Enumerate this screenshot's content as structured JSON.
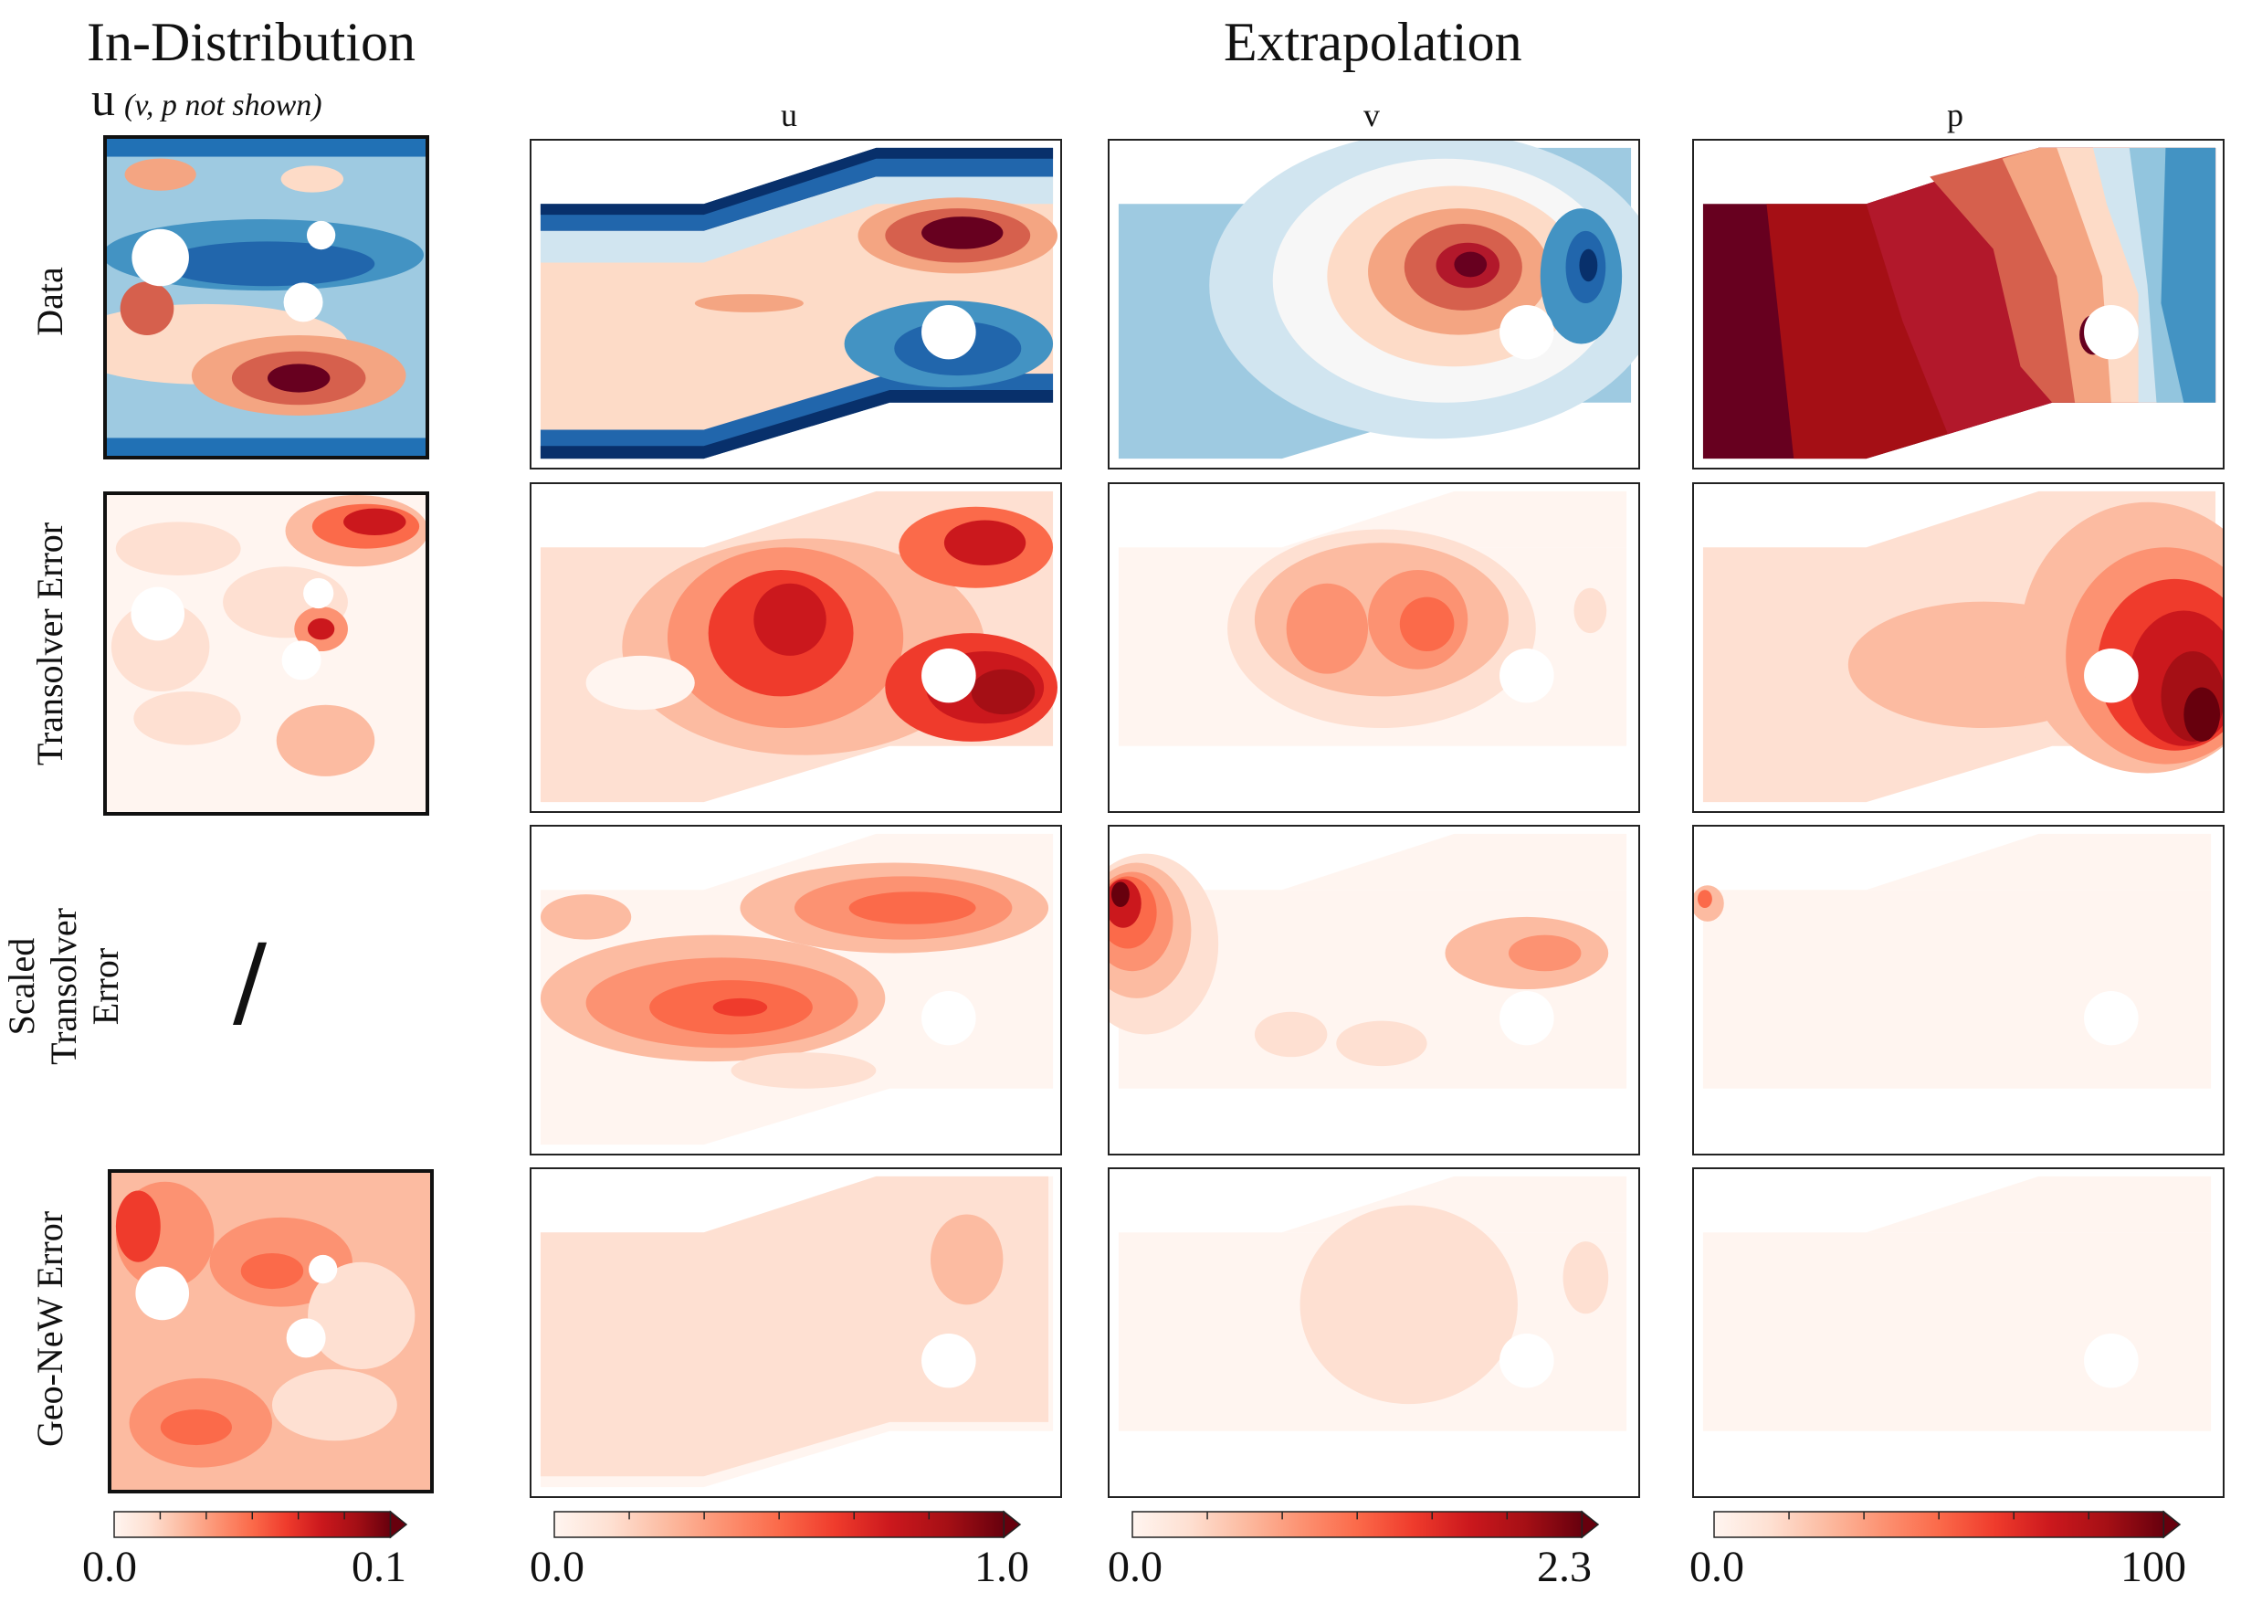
{
  "headers": {
    "in_distribution": "In-Distribution",
    "extrapolation": "Extrapolation",
    "id_field": "u",
    "id_note": "(v, p not shown)",
    "columns": [
      "u",
      "v",
      "p"
    ]
  },
  "rows": [
    "Data",
    "Transolver Error",
    "Scaled Transolver Error",
    "Geo-NeW Error"
  ],
  "missing_symbol": "/",
  "colorbars": [
    {
      "min": "0.0",
      "max": "0.1"
    },
    {
      "min": "0.0",
      "max": "1.0"
    },
    {
      "min": "0.0",
      "max": "2.3"
    },
    {
      "min": "0.0",
      "max": "100"
    }
  ],
  "colors": {
    "reds": [
      "#fff5f0",
      "#fee0d2",
      "#fcbba1",
      "#fc9272",
      "#fb6a4a",
      "#ef3b2c",
      "#cb181d",
      "#a50f15",
      "#67000d"
    ],
    "blue_dark": "#08306b",
    "blue_mid": "#2171b5",
    "blue_light": "#9ecae1",
    "neutral": "#f7f7f7",
    "red_dark": "#67001f",
    "red_mid": "#d6604d",
    "red_light": "#f4a582"
  }
}
